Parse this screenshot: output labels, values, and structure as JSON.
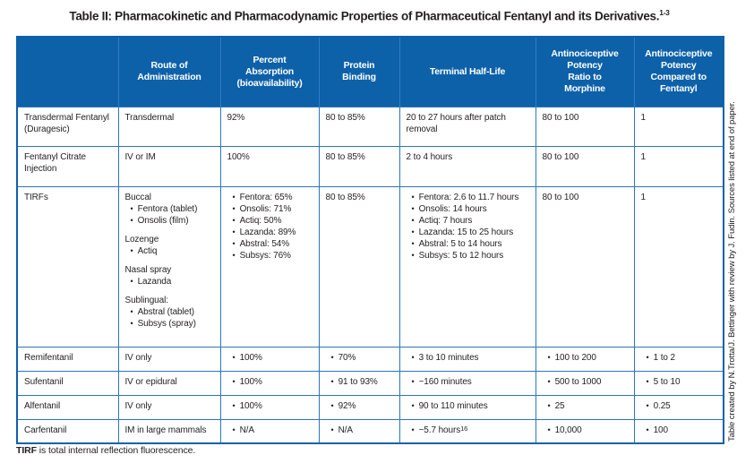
{
  "title": {
    "text": "Table II: Pharmacokinetic and Pharmacodynamic Properties of Pharmaceutical Fentanyl and its Derivatives.",
    "citation": "1-3"
  },
  "side_note": "Table created by N.Trotta/J. Bettinger with review by J. Fudin. Sources listed at end of paper.",
  "footnote": {
    "term": "TIRF",
    "rest": " is total internal reflection fluorescence."
  },
  "colors": {
    "header_blue": "#0d61a9",
    "border_blue": "#2b76ba",
    "header_text": "#ffffff",
    "body_text": "#231f20"
  },
  "table": {
    "headers": [
      "",
      "Route of\nAdministration",
      "Percent\nAbsorption\n(bioavailability)",
      "Protein\nBinding",
      "Terminal Half-Life",
      "Antinociceptive\nPotency\nRatio to\nMorphine",
      "Antinociceptive\nPotency\nCompared to\nFentanyl"
    ],
    "rows": [
      {
        "id": "transdermal-fentanyl",
        "cells": [
          [
            {
              "t": "Transdermal Fentanyl (Duragesic)"
            }
          ],
          [
            {
              "t": "Transdermal"
            }
          ],
          [
            {
              "t": "92%"
            }
          ],
          [
            {
              "t": "80 to 85%"
            }
          ],
          [
            {
              "t": "20 to 27 hours after patch removal"
            }
          ],
          [
            {
              "t": "80 to 100"
            }
          ],
          [
            {
              "t": "1"
            }
          ]
        ]
      },
      {
        "id": "fentanyl-citrate-injection",
        "cells": [
          [
            {
              "t": "Fentanyl Citrate Injection"
            }
          ],
          [
            {
              "t": "IV or IM"
            }
          ],
          [
            {
              "t": "100%"
            }
          ],
          [
            {
              "t": "80 to 85%"
            }
          ],
          [
            {
              "t": "2 to 4 hours"
            }
          ],
          [
            {
              "t": "80 to 100"
            }
          ],
          [
            {
              "t": "1"
            }
          ]
        ]
      },
      {
        "id": "tirfs",
        "cells": [
          [
            {
              "t": "TIRFs"
            }
          ],
          [
            {
              "t": "Buccal"
            },
            {
              "t": "Fentora (tablet)",
              "b": true
            },
            {
              "t": "Onsolis (film)",
              "b": true
            },
            {
              "t": "Lozenge",
              "g": true
            },
            {
              "t": "Actiq",
              "b": true
            },
            {
              "t": "Nasal spray",
              "g": true
            },
            {
              "t": "Lazanda",
              "b": true
            },
            {
              "t": "Sublingual:",
              "g": true
            },
            {
              "t": "Abstral (tablet)",
              "b": true
            },
            {
              "t": "Subsys (spray)",
              "b": true
            }
          ],
          [
            {
              "t": "Fentora: 65%",
              "b": true
            },
            {
              "t": "Onsolis: 71%",
              "b": true
            },
            {
              "t": "Actiq: 50%",
              "b": true
            },
            {
              "t": "Lazanda: 89%",
              "b": true
            },
            {
              "t": "Abstral: 54%",
              "b": true
            },
            {
              "t": "Subsys: 76%",
              "b": true
            }
          ],
          [
            {
              "t": "80 to 85%"
            }
          ],
          [
            {
              "t": "Fentora: 2.6 to 11.7 hours",
              "b": true
            },
            {
              "t": "Onsolis: 14 hours",
              "b": true
            },
            {
              "t": "Actiq: 7 hours",
              "b": true
            },
            {
              "t": "Lazanda: 15 to 25 hours",
              "b": true
            },
            {
              "t": "Abstral: 5 to 14 hours",
              "b": true
            },
            {
              "t": "Subsys: 5 to 12 hours",
              "b": true
            }
          ],
          [
            {
              "t": "80 to 100"
            }
          ],
          [
            {
              "t": "1"
            }
          ]
        ]
      },
      {
        "id": "remifentanil",
        "cells": [
          [
            {
              "t": "Remifentanil"
            }
          ],
          [
            {
              "t": "IV only"
            }
          ],
          [
            {
              "t": "100%",
              "b": true
            }
          ],
          [
            {
              "t": "70%",
              "b": true
            }
          ],
          [
            {
              "t": "3 to 10 minutes",
              "b": true
            }
          ],
          [
            {
              "t": "100 to 200",
              "b": true
            }
          ],
          [
            {
              "t": "1 to 2",
              "b": true
            }
          ]
        ]
      },
      {
        "id": "sufentanil",
        "cells": [
          [
            {
              "t": "Sufentanil"
            }
          ],
          [
            {
              "t": "IV or epidural"
            }
          ],
          [
            {
              "t": "100%",
              "b": true
            }
          ],
          [
            {
              "t": "91 to 93%",
              "b": true
            }
          ],
          [
            {
              "t": "~160 minutes",
              "b": true
            }
          ],
          [
            {
              "t": "500 to 1000",
              "b": true
            }
          ],
          [
            {
              "t": "5 to 10",
              "b": true
            }
          ]
        ]
      },
      {
        "id": "alfentanil",
        "cells": [
          [
            {
              "t": "Alfentanil"
            }
          ],
          [
            {
              "t": "IV only"
            }
          ],
          [
            {
              "t": "100%",
              "b": true
            }
          ],
          [
            {
              "t": "92%",
              "b": true
            }
          ],
          [
            {
              "t": "90 to 110 minutes",
              "b": true
            }
          ],
          [
            {
              "t": "25",
              "b": true
            }
          ],
          [
            {
              "t": "0.25",
              "b": true
            }
          ]
        ]
      },
      {
        "id": "carfentanil",
        "cells": [
          [
            {
              "t": "Carfentanil"
            }
          ],
          [
            {
              "t": "IM in large mammals"
            }
          ],
          [
            {
              "t": "N/A",
              "b": true
            }
          ],
          [
            {
              "t": "N/A",
              "b": true
            }
          ],
          [
            {
              "t": "~5.7 hours",
              "b": true,
              "sup": "16"
            }
          ],
          [
            {
              "t": "10,000",
              "b": true
            }
          ],
          [
            {
              "t": "100",
              "b": true
            }
          ]
        ]
      }
    ]
  }
}
